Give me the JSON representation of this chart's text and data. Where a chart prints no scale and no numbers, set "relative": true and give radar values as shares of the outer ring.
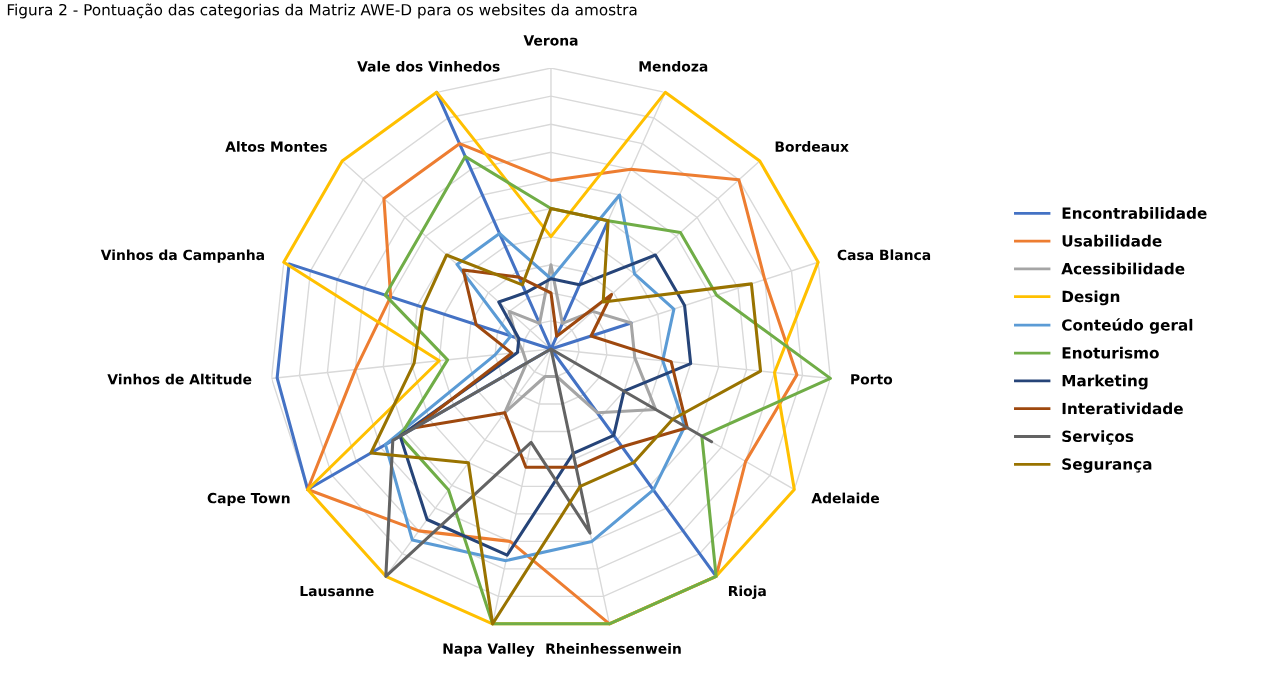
{
  "chart_data": {
    "type": "radar",
    "title": "Figura 2 - Pontuação das categorias da Matriz AWE-D para os websites da amostra",
    "relative": true,
    "grid": true,
    "legend": "right",
    "categories": [
      "Verona",
      "Mendoza",
      "Bordeaux",
      "Casa Blanca",
      "Porto",
      "Adelaide",
      "Rioja",
      "Rheinhessenwein",
      "Napa Valley",
      "Lausanne",
      "Cape Town",
      "Vinhos de Altitude",
      "Vinhos da Campanha",
      "Altos Montes",
      "Vale dos Vinhedos"
    ],
    "series": [
      {
        "name": "Encontrabilidade",
        "color": "#4472c4",
        "values": [
          0,
          0.5,
          0,
          0.3,
          0,
          0,
          1,
          0,
          0,
          0,
          1,
          0.98,
          0.98,
          0,
          1
        ]
      },
      {
        "name": "Usabilidade",
        "color": "#ed7d31",
        "values": [
          0.6,
          0.7,
          0.9,
          0.8,
          0.88,
          0.8,
          1,
          1,
          0.7,
          0.8,
          1,
          0.7,
          0.6,
          0.8,
          0.8
        ]
      },
      {
        "name": "Acessibilidade",
        "color": "#a5a5a5",
        "values": [
          0.3,
          0.1,
          0.2,
          0.3,
          0.3,
          0.43,
          0.28,
          0.1,
          0.1,
          0.28,
          0.1,
          0.1,
          0.13,
          0.2,
          0.1
        ]
      },
      {
        "name": "Design",
        "color": "#ffc000",
        "values": [
          0.4,
          1,
          1,
          1,
          0.8,
          1,
          1,
          1,
          1,
          1,
          1,
          0.4,
          1,
          1,
          1
        ]
      },
      {
        "name": "Conteúdo geral",
        "color": "#5b9bd5",
        "values": [
          0.25,
          0.6,
          0.4,
          0.46,
          0.4,
          0.55,
          0.62,
          0.7,
          0.77,
          0.84,
          0.68,
          0.2,
          0.15,
          0.45,
          0.45
        ]
      },
      {
        "name": "Enoturismo",
        "color": "#70ad47",
        "values": [
          0.5,
          0.5,
          0.62,
          0.62,
          1,
          0.62,
          1,
          1,
          1,
          0.62,
          0.62,
          0.37,
          0.62,
          0.62,
          0.75
        ]
      },
      {
        "name": "Marketing",
        "color": "#264478",
        "values": [
          0.25,
          0.25,
          0.5,
          0.5,
          0.5,
          0.3,
          0.38,
          0.38,
          0.75,
          0.75,
          0.62,
          0.12,
          0.12,
          0.25,
          0.22
        ]
      },
      {
        "name": "Interatividade",
        "color": "#9e480e",
        "values": [
          0.2,
          0.05,
          0.29,
          0.15,
          0.43,
          0.56,
          0.43,
          0.43,
          0.43,
          0.28,
          0.56,
          0.14,
          0.28,
          0.42,
          0.28
        ]
      },
      {
        "name": "Serviços",
        "color": "#636363",
        "values": [
          0,
          0,
          0,
          0,
          0,
          0.66,
          0,
          0.67,
          0.34,
          1,
          0.65,
          0,
          0,
          0,
          0
        ]
      },
      {
        "name": "Segurança",
        "color": "#997300",
        "values": [
          0.5,
          0.5,
          0.25,
          0.75,
          0.75,
          0.5,
          0.5,
          0.5,
          1,
          0.5,
          0.74,
          0.49,
          0.48,
          0.5,
          0.25
        ]
      }
    ]
  }
}
